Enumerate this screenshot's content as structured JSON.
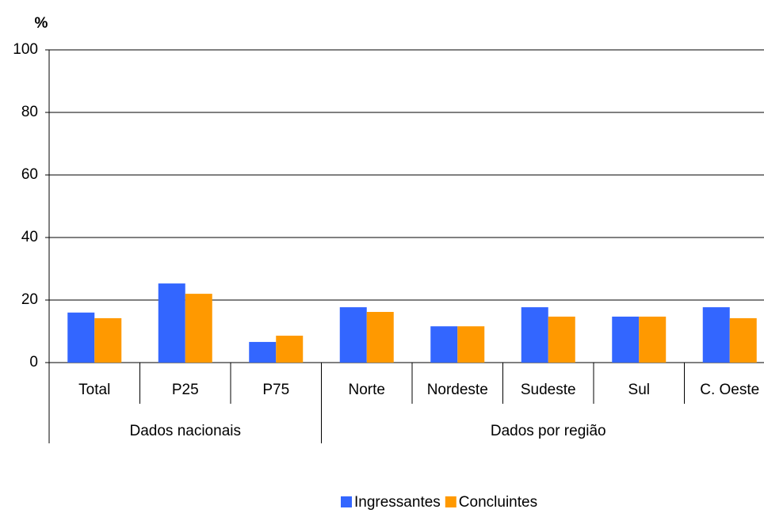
{
  "chart_data": {
    "type": "bar",
    "ylabel": "%",
    "groups": [
      {
        "name": "Dados nacionais",
        "categories": [
          "Total",
          "P25",
          "P75"
        ]
      },
      {
        "name": "Dados por região",
        "categories": [
          "Norte",
          "Nordeste",
          "Sudeste",
          "Sul",
          "C. Oeste"
        ]
      }
    ],
    "series": [
      {
        "name": "Ingressantes",
        "color": "#3366ff",
        "values": [
          16,
          25.3,
          6.6,
          17.7,
          11.6,
          17.7,
          14.7,
          17.7
        ]
      },
      {
        "name": "Concluintes",
        "color": "#ff9900",
        "values": [
          14.2,
          22,
          8.6,
          16.2,
          11.6,
          14.7,
          14.7,
          14.2
        ]
      }
    ],
    "ylim": [
      0,
      100
    ],
    "yticks": [
      0,
      20,
      40,
      60,
      80,
      100
    ],
    "grid": true,
    "legend": "bottom"
  }
}
